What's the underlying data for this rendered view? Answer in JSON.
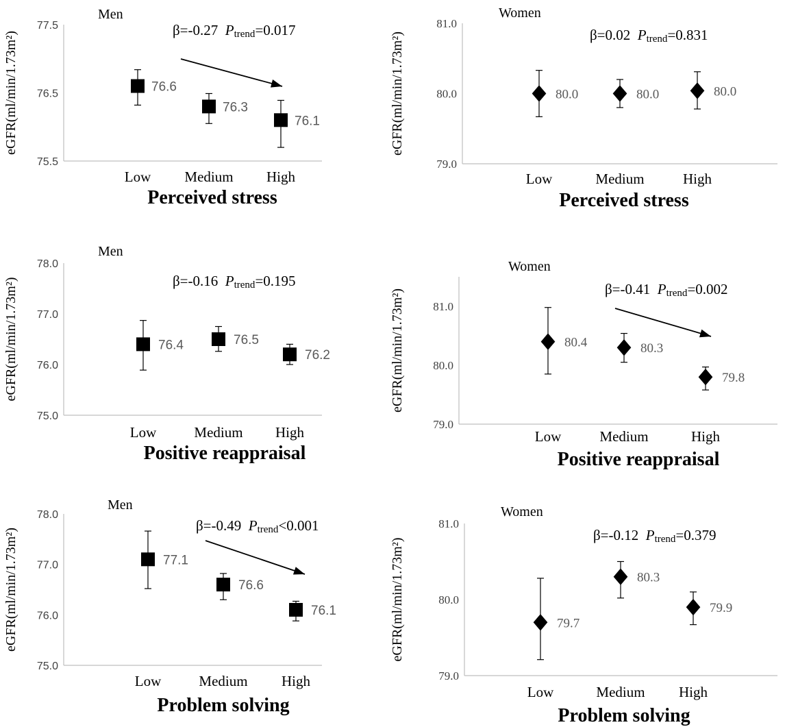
{
  "chart_data": [
    {
      "type": "scatter",
      "panel": "men-perceived-stress",
      "group": "Men",
      "xlabel": "Perceived stress",
      "ylabel": "eGFR(ml/min/1.73m²)",
      "categories": [
        "Low",
        "Medium",
        "High"
      ],
      "values": [
        76.6,
        76.3,
        76.1
      ],
      "ci_lower": [
        76.32,
        76.05,
        75.7
      ],
      "ci_upper": [
        76.84,
        76.49,
        76.39
      ],
      "value_labels": [
        "76.6",
        "76.3",
        "76.1"
      ],
      "ylim": [
        75.5,
        77.5
      ],
      "yticks": [
        "75.5",
        "76.5",
        "77.5"
      ],
      "stat": {
        "beta": "β=-0.27",
        "p_italic": "P",
        "p_sub": "trend",
        "p_value": "=0.017"
      },
      "trend_arrow": true,
      "marker": "square"
    },
    {
      "type": "scatter",
      "panel": "women-perceived-stress",
      "group": "Women",
      "xlabel": "Perceived stress",
      "ylabel": "eGFR(ml/min/1.73m²)",
      "categories": [
        "Low",
        "Medium",
        "High"
      ],
      "values": [
        80.0,
        80.0,
        80.04
      ],
      "ci_lower": [
        79.67,
        79.8,
        79.78
      ],
      "ci_upper": [
        80.33,
        80.2,
        80.31
      ],
      "value_labels": [
        "80.0",
        "80.0",
        "80.0"
      ],
      "ylim": [
        79.0,
        81.0
      ],
      "yticks": [
        "79.0",
        "80.0",
        "81.0"
      ],
      "stat": {
        "beta": "β=0.02",
        "p_italic": "P",
        "p_sub": "trend",
        "p_value": "=0.831"
      },
      "trend_arrow": false,
      "marker": "diamond"
    },
    {
      "type": "scatter",
      "panel": "men-positive-reappraisal",
      "group": "Men",
      "xlabel": "Positive reappraisal",
      "ylabel": "eGFR(ml/min/1.73m²)",
      "categories": [
        "Low",
        "Medium",
        "High"
      ],
      "values": [
        76.4,
        76.5,
        76.2
      ],
      "ci_lower": [
        75.89,
        76.26,
        76.0
      ],
      "ci_upper": [
        76.87,
        76.75,
        76.4
      ],
      "value_labels": [
        "76.4",
        "76.5",
        "76.2"
      ],
      "ylim": [
        75.0,
        78.0
      ],
      "yticks": [
        "75.0",
        "76.0",
        "77.0",
        "78.0"
      ],
      "stat": {
        "beta": "β=-0.16",
        "p_italic": "P",
        "p_sub": "trend",
        "p_value": "=0.195"
      },
      "trend_arrow": false,
      "marker": "square"
    },
    {
      "type": "scatter",
      "panel": "women-positive-reappraisal",
      "group": "Women",
      "xlabel": "Positive reappraisal",
      "ylabel": "eGFR(ml/min/1.73m²)",
      "categories": [
        "Low",
        "Medium",
        "High"
      ],
      "values": [
        80.4,
        80.3,
        79.8
      ],
      "ci_lower": [
        79.85,
        80.05,
        79.58
      ],
      "ci_upper": [
        80.98,
        80.54,
        79.97
      ],
      "value_labels": [
        "80.4",
        "80.3",
        "79.8"
      ],
      "ylim": [
        79.0,
        81.5
      ],
      "yticks": [
        "79.0",
        "80.0",
        "81.0"
      ],
      "stat": {
        "beta": "β=-0.41",
        "p_italic": "P",
        "p_sub": "trend",
        "p_value": "=0.002"
      },
      "trend_arrow": true,
      "marker": "diamond"
    },
    {
      "type": "scatter",
      "panel": "men-problem-solving",
      "group": "Men",
      "xlabel": "Problem solving",
      "ylabel": "eGFR(ml/min/1.73m²)",
      "categories": [
        "Low",
        "Medium",
        "High"
      ],
      "values": [
        77.1,
        76.6,
        76.1
      ],
      "ci_lower": [
        76.52,
        76.3,
        75.88
      ],
      "ci_upper": [
        77.66,
        76.82,
        76.27
      ],
      "value_labels": [
        "77.1",
        "76.6",
        "76.1"
      ],
      "ylim": [
        75.0,
        78.0
      ],
      "yticks": [
        "75.0",
        "76.0",
        "77.0",
        "78.0"
      ],
      "stat": {
        "beta": "β=-0.49",
        "p_italic": "P",
        "p_sub": "trend",
        "p_value": "<0.001"
      },
      "trend_arrow": true,
      "marker": "square"
    },
    {
      "type": "scatter",
      "panel": "women-problem-solving",
      "group": "Women",
      "xlabel": "Problem solving",
      "ylabel": "eGFR(ml/min/1.73m²)",
      "categories": [
        "Low",
        "Medium",
        "High"
      ],
      "values": [
        79.7,
        80.3,
        79.9
      ],
      "ci_lower": [
        79.21,
        80.02,
        79.67
      ],
      "ci_upper": [
        80.28,
        80.5,
        80.1
      ],
      "value_labels": [
        "79.7",
        "80.3",
        "79.9"
      ],
      "ylim": [
        79.0,
        81.0
      ],
      "yticks": [
        "79.0",
        "80.0",
        "81.0"
      ],
      "stat": {
        "beta": "β=-0.12",
        "p_italic": "P",
        "p_sub": "trend",
        "p_value": "=0.379"
      },
      "trend_arrow": false,
      "marker": "diamond"
    }
  ]
}
